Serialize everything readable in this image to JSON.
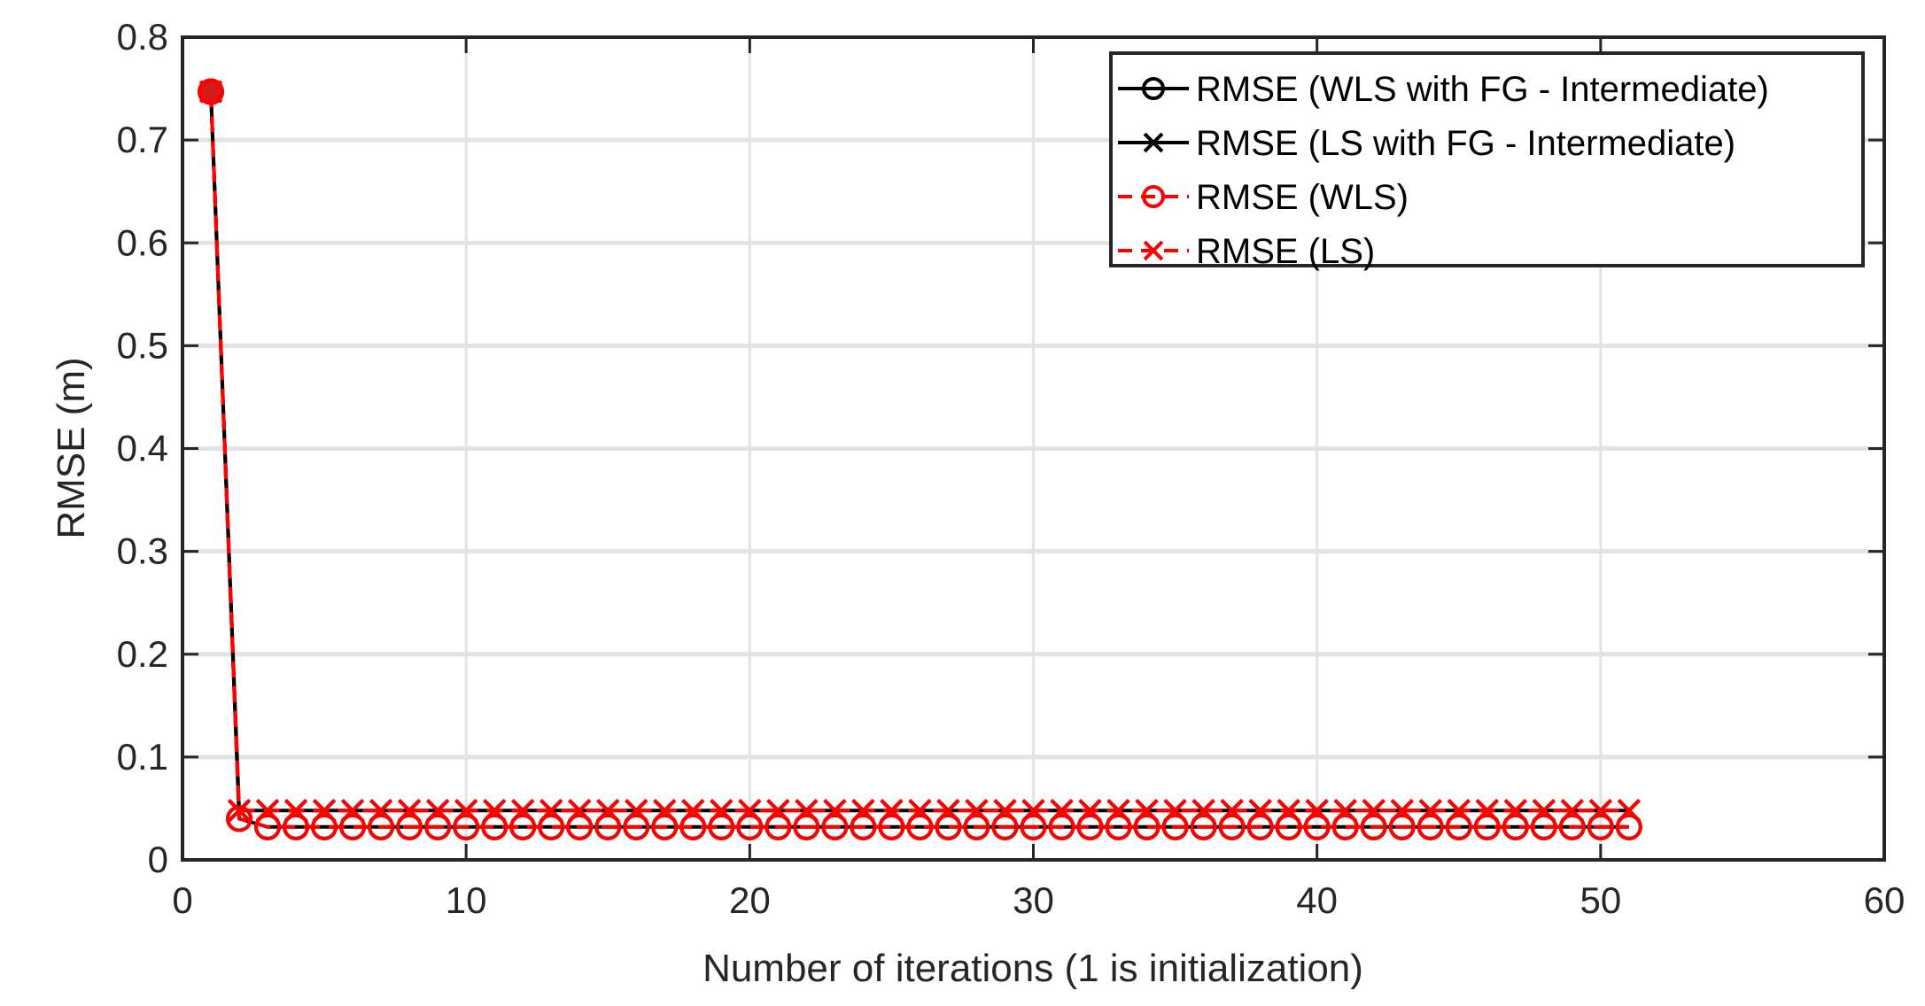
{
  "chart_data": {
    "type": "line",
    "title": "",
    "xlabel": "Number of iterations (1 is initialization)",
    "ylabel": "RMSE (m)",
    "xlim": [
      0,
      60
    ],
    "ylim": [
      0,
      0.8
    ],
    "xticks": [
      0,
      10,
      20,
      30,
      40,
      50,
      60
    ],
    "yticks": [
      0,
      0.1,
      0.2,
      0.3,
      0.4,
      0.5,
      0.6,
      0.7,
      0.8
    ],
    "xtick_labels": [
      "0",
      "10",
      "20",
      "30",
      "40",
      "50",
      "60"
    ],
    "ytick_labels": [
      "0",
      "0.1",
      "0.2",
      "0.3",
      "0.4",
      "0.5",
      "0.6",
      "0.7",
      "0.8"
    ],
    "grid": true,
    "legend_position": "upper right",
    "x_range_of_data": [
      1,
      51
    ],
    "series": [
      {
        "name": "RMSE (WLS with FG - Intermediate)",
        "color": "#000000",
        "line_style": "solid",
        "marker": "o",
        "initial_value": 0.747,
        "second_value": 0.04,
        "converged_value": 0.032
      },
      {
        "name": "RMSE (LS with FG - Intermediate)",
        "color": "#000000",
        "line_style": "solid",
        "marker": "x",
        "initial_value": 0.747,
        "second_value": 0.048,
        "converged_value": 0.048
      },
      {
        "name": "RMSE (WLS)",
        "color": "#ff0000",
        "line_style": "dashed",
        "marker": "o",
        "initial_value": 0.747,
        "second_value": 0.04,
        "converged_value": 0.032
      },
      {
        "name": "RMSE (LS)",
        "color": "#ff0000",
        "line_style": "dashed",
        "marker": "x",
        "initial_value": 0.747,
        "second_value": 0.048,
        "converged_value": 0.048
      }
    ]
  },
  "legend": {
    "items": [
      "RMSE (WLS with FG - Intermediate)",
      "RMSE (LS with FG - Intermediate)",
      "RMSE (WLS)",
      "RMSE (LS)"
    ]
  }
}
